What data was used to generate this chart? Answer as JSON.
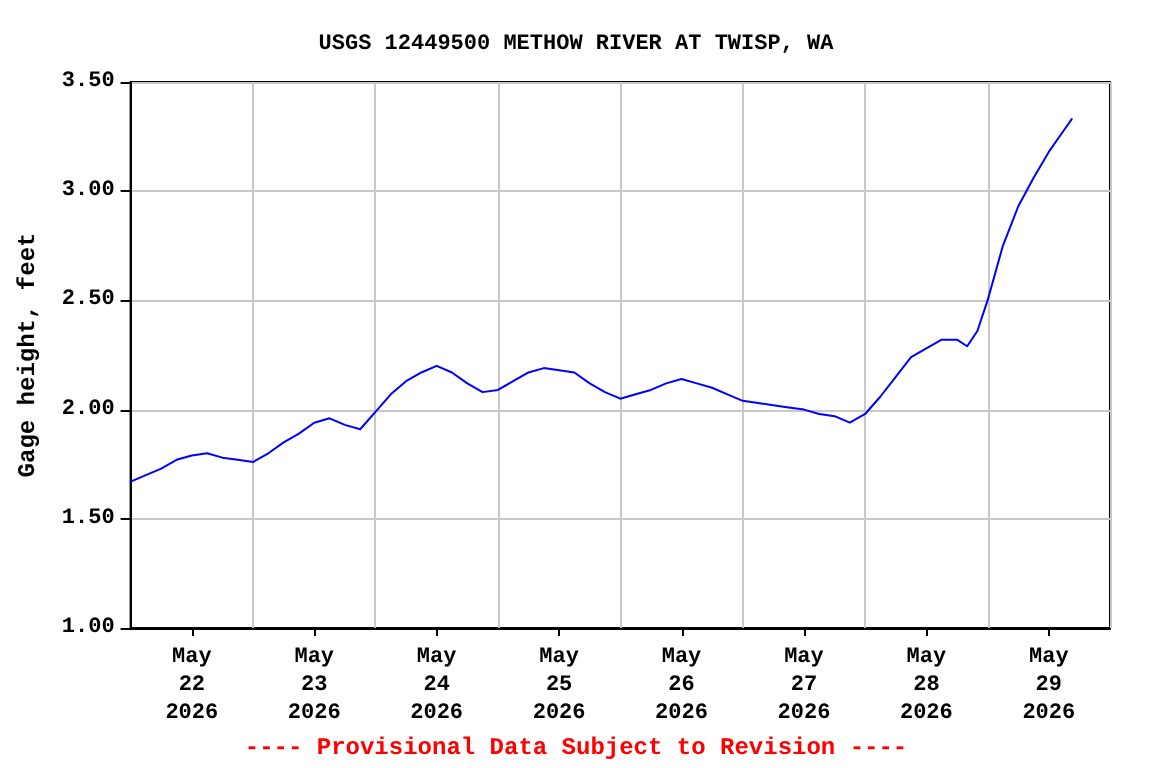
{
  "chart_data": {
    "type": "line",
    "title": "USGS 12449500 METHOW RIVER AT TWISP, WA",
    "ylabel": "Gage height, feet",
    "annotations": [
      "---- Provisional Data Subject to Revision ----"
    ],
    "x": [
      "2026-05-22T00:00",
      "2026-05-22T03:00",
      "2026-05-22T06:00",
      "2026-05-22T09:00",
      "2026-05-22T12:00",
      "2026-05-22T15:00",
      "2026-05-22T18:00",
      "2026-05-22T21:00",
      "2026-05-23T00:00",
      "2026-05-23T03:00",
      "2026-05-23T06:00",
      "2026-05-23T09:00",
      "2026-05-23T12:00",
      "2026-05-23T15:00",
      "2026-05-23T18:00",
      "2026-05-23T21:00",
      "2026-05-24T00:00",
      "2026-05-24T03:00",
      "2026-05-24T06:00",
      "2026-05-24T09:00",
      "2026-05-24T12:00",
      "2026-05-24T15:00",
      "2026-05-24T18:00",
      "2026-05-24T21:00",
      "2026-05-25T00:00",
      "2026-05-25T03:00",
      "2026-05-25T06:00",
      "2026-05-25T09:00",
      "2026-05-25T12:00",
      "2026-05-25T15:00",
      "2026-05-25T18:00",
      "2026-05-25T21:00",
      "2026-05-26T00:00",
      "2026-05-26T03:00",
      "2026-05-26T06:00",
      "2026-05-26T09:00",
      "2026-05-26T12:00",
      "2026-05-26T15:00",
      "2026-05-26T18:00",
      "2026-05-26T21:00",
      "2026-05-27T00:00",
      "2026-05-27T03:00",
      "2026-05-27T06:00",
      "2026-05-27T09:00",
      "2026-05-27T12:00",
      "2026-05-27T15:00",
      "2026-05-27T18:00",
      "2026-05-27T21:00",
      "2026-05-28T00:00",
      "2026-05-28T03:00",
      "2026-05-28T06:00",
      "2026-05-28T09:00",
      "2026-05-28T12:00",
      "2026-05-28T15:00",
      "2026-05-28T18:00",
      "2026-05-28T20:00",
      "2026-05-28T22:00",
      "2026-05-29T00:00",
      "2026-05-29T03:00",
      "2026-05-29T06:00",
      "2026-05-29T09:00",
      "2026-05-29T12:00",
      "2026-05-29T15:00",
      "2026-05-29T16:30"
    ],
    "series": [
      {
        "color": "#0000ff",
        "values": [
          1.67,
          1.7,
          1.73,
          1.77,
          1.79,
          1.8,
          1.78,
          1.77,
          1.76,
          1.8,
          1.85,
          1.89,
          1.94,
          1.96,
          1.93,
          1.91,
          1.99,
          2.07,
          2.13,
          2.17,
          2.2,
          2.17,
          2.12,
          2.08,
          2.09,
          2.13,
          2.17,
          2.19,
          2.18,
          2.17,
          2.12,
          2.08,
          2.05,
          2.07,
          2.09,
          2.12,
          2.14,
          2.12,
          2.1,
          2.07,
          2.04,
          2.03,
          2.02,
          2.01,
          2.0,
          1.98,
          1.97,
          1.94,
          1.98,
          2.06,
          2.15,
          2.24,
          2.28,
          2.32,
          2.32,
          2.29,
          2.36,
          2.5,
          2.75,
          2.93,
          3.06,
          3.18,
          3.28,
          3.33
        ]
      }
    ],
    "xlim": [
      "2026-05-22T00:00",
      "2026-05-30T00:00"
    ],
    "xticks": [
      {
        "value": "2026-05-22T00:00",
        "label": null
      },
      {
        "value": "2026-05-22T12:00",
        "label": "May\n22\n2026"
      },
      {
        "value": "2026-05-23T00:00",
        "label": null
      },
      {
        "value": "2026-05-23T12:00",
        "label": "May\n23\n2026"
      },
      {
        "value": "2026-05-24T00:00",
        "label": null
      },
      {
        "value": "2026-05-24T12:00",
        "label": "May\n24\n2026"
      },
      {
        "value": "2026-05-25T00:00",
        "label": null
      },
      {
        "value": "2026-05-25T12:00",
        "label": "May\n25\n2026"
      },
      {
        "value": "2026-05-26T00:00",
        "label": null
      },
      {
        "value": "2026-05-26T12:00",
        "label": "May\n26\n2026"
      },
      {
        "value": "2026-05-27T00:00",
        "label": null
      },
      {
        "value": "2026-05-27T12:00",
        "label": "May\n27\n2026"
      },
      {
        "value": "2026-05-28T00:00",
        "label": null
      },
      {
        "value": "2026-05-28T12:00",
        "label": "May\n28\n2026"
      },
      {
        "value": "2026-05-29T00:00",
        "label": null
      },
      {
        "value": "2026-05-29T12:00",
        "label": "May\n29\n2026"
      },
      {
        "value": "2026-05-30T00:00",
        "label": null
      }
    ],
    "ylim": [
      1.0,
      3.5
    ],
    "yticks": [
      {
        "value": 1.0,
        "label": "1.00"
      },
      {
        "value": 1.5,
        "label": "1.50"
      },
      {
        "value": 2.0,
        "label": "2.00"
      },
      {
        "value": 2.5,
        "label": "2.50"
      },
      {
        "value": 3.0,
        "label": "3.00"
      },
      {
        "value": 3.5,
        "label": "3.50"
      }
    ],
    "grid": true,
    "marker": "none",
    "line_style": "solid"
  }
}
